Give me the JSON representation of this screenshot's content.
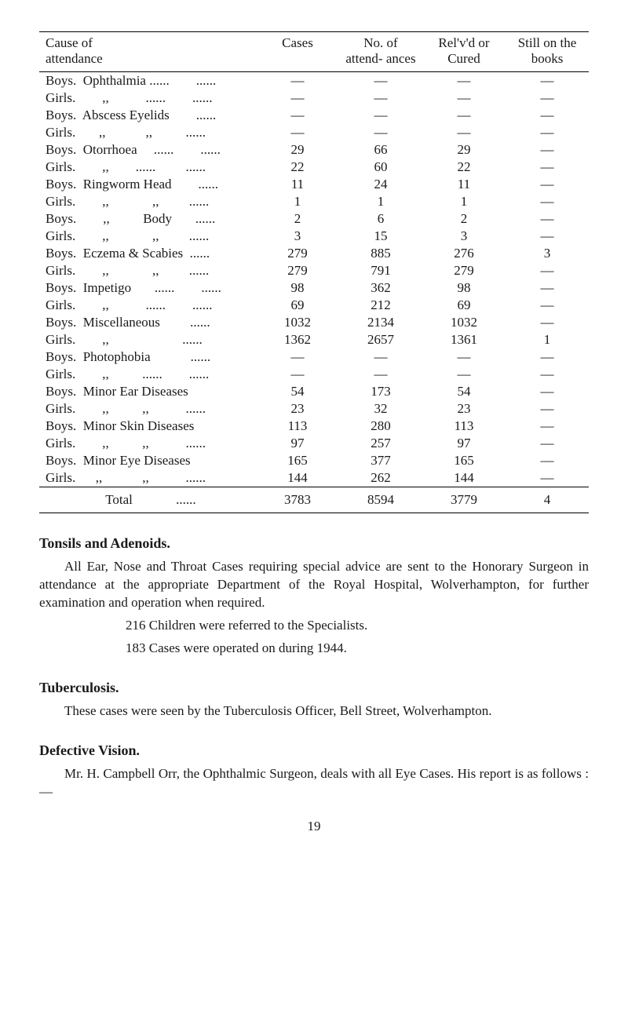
{
  "table": {
    "columns": [
      "Cause of\nattendance",
      "Cases",
      "No. of\nattend-\nances",
      "Rel'v'd\nor\nCured",
      "Still\non the\nbooks"
    ],
    "col_align": [
      "left",
      "center",
      "center",
      "center",
      "center"
    ],
    "rows": [
      {
        "cause": "Boys.  Ophthalmia ......        ......",
        "cases": "—",
        "att": "—",
        "rel": "—",
        "still": "—"
      },
      {
        "cause": "Girls.        ,,           ......        ......",
        "cases": "—",
        "att": "—",
        "rel": "—",
        "still": "—"
      },
      {
        "cause": "Boys.  Abscess Eyelids        ......",
        "cases": "—",
        "att": "—",
        "rel": "—",
        "still": "—"
      },
      {
        "cause": "Girls.       ,,            ,,          ......",
        "cases": "—",
        "att": "—",
        "rel": "—",
        "still": "—"
      },
      {
        "cause": "Boys.  Otorrhoea     ......        ......",
        "cases": "29",
        "att": "66",
        "rel": "29",
        "still": "—"
      },
      {
        "cause": "Girls.        ,,        ......         ......",
        "cases": "22",
        "att": "60",
        "rel": "22",
        "still": "—"
      },
      {
        "cause": "Boys.  Ringworm Head        ......",
        "cases": "11",
        "att": "24",
        "rel": "11",
        "still": "—"
      },
      {
        "cause": "Girls.        ,,             ,,         ......",
        "cases": "1",
        "att": "1",
        "rel": "1",
        "still": "—"
      },
      {
        "cause": "Boys.        ,,          Body       ......",
        "cases": "2",
        "att": "6",
        "rel": "2",
        "still": "—"
      },
      {
        "cause": "Girls.        ,,             ,,         ......",
        "cases": "3",
        "att": "15",
        "rel": "3",
        "still": "—"
      },
      {
        "cause": "Boys.  Eczema & Scabies  ......",
        "cases": "279",
        "att": "885",
        "rel": "276",
        "still": "3"
      },
      {
        "cause": "Girls.        ,,             ,,         ......",
        "cases": "279",
        "att": "791",
        "rel": "279",
        "still": "—"
      },
      {
        "cause": "Boys.  Impetigo       ......        ......",
        "cases": "98",
        "att": "362",
        "rel": "98",
        "still": "—"
      },
      {
        "cause": "Girls.        ,,           ......        ......",
        "cases": "69",
        "att": "212",
        "rel": "69",
        "still": "—"
      },
      {
        "cause": "Boys.  Miscellaneous         ......",
        "cases": "1032",
        "att": "2134",
        "rel": "1032",
        "still": "—"
      },
      {
        "cause": "Girls.        ,,                      ......",
        "cases": "1362",
        "att": "2657",
        "rel": "1361",
        "still": "1"
      },
      {
        "cause": "Boys.  Photophobia            ......",
        "cases": "—",
        "att": "—",
        "rel": "—",
        "still": "—"
      },
      {
        "cause": "Girls.        ,,          ......        ......",
        "cases": "—",
        "att": "—",
        "rel": "—",
        "still": "—"
      },
      {
        "cause": "Boys.  Minor Ear Diseases",
        "cases": "54",
        "att": "173",
        "rel": "54",
        "still": "—"
      },
      {
        "cause": "Girls.        ,,          ,,           ......",
        "cases": "23",
        "att": "32",
        "rel": "23",
        "still": "—"
      },
      {
        "cause": "Boys.  Minor Skin Diseases",
        "cases": "113",
        "att": "280",
        "rel": "113",
        "still": "—"
      },
      {
        "cause": "Girls.        ,,          ,,           ......",
        "cases": "97",
        "att": "257",
        "rel": "97",
        "still": "—"
      },
      {
        "cause": "Boys.  Minor Eye Diseases",
        "cases": "165",
        "att": "377",
        "rel": "165",
        "still": "—"
      },
      {
        "cause": "Girls.      ,,            ,,           ......",
        "cases": "144",
        "att": "262",
        "rel": "144",
        "still": "—"
      }
    ],
    "total": {
      "label": "                  Total             ......",
      "cases": "3783",
      "att": "8594",
      "rel": "3779",
      "still": "4"
    },
    "font_size": 17,
    "border_color": "#000000"
  },
  "sections": {
    "tonsils": {
      "heading": "Tonsils and Adenoids.",
      "para": "All Ear, Nose and Throat Cases requiring special advice are sent to the Honorary Surgeon in attendance at the appropriate Department of the Royal Hospital, Wolverhampton, for further examination and operation when required.",
      "line1": "216 Children were referred to the Specialists.",
      "line2": "183 Cases were operated on during 1944."
    },
    "tb": {
      "heading": "Tuberculosis.",
      "para": "These cases were seen by the Tuberculosis Officer, Bell Street, Wolverhampton."
    },
    "vision": {
      "heading": "Defective Vision.",
      "para": "Mr. H. Campbell Orr, the Ophthalmic Surgeon, deals with all Eye Cases.   His report is as follows :—"
    }
  },
  "page_number": "19",
  "style": {
    "background_color": "#ffffff",
    "text_color": "#1a1a1a",
    "font_family": "Times New Roman, serif",
    "body_fontsize": 17,
    "heading_fontsize": 18
  }
}
